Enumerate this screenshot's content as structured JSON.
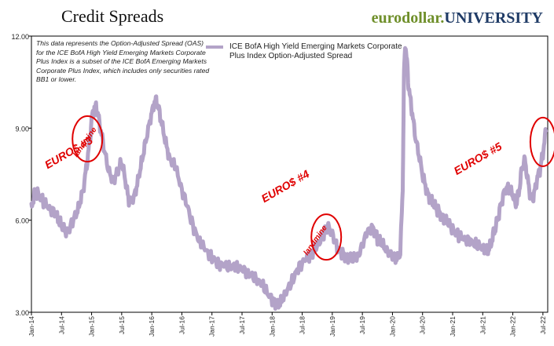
{
  "header": {
    "title": "Credit Spreads",
    "brand_part1": "eurodollar.",
    "brand_part2": "UNIVERSITY"
  },
  "note_text": "This data represents the Option-Adjusted Spread (OAS) for the ICE BofA High Yield Emerging Markets Corporate Plus Index is a subset of the ICE BofA Emerging Markets Corporate Plus Index, which includes only securities rated BB1 or lower.",
  "colors": {
    "series": "#b3a3c8",
    "annotation": "#e00000",
    "brand_green": "#6f8f2a",
    "brand_blue": "#1f3b66"
  },
  "chart_data": {
    "type": "line",
    "title": "Credit Spreads",
    "xlabel": "",
    "ylabel": "",
    "ylim": [
      3.0,
      12.0
    ],
    "xlim": [
      2014.0,
      2022.58
    ],
    "yticks": [
      3.0,
      6.0,
      9.0,
      12.0
    ],
    "ytick_labels": [
      "3.00",
      "6.00",
      "9.00",
      "12.00"
    ],
    "xtick_labels": [
      "Jan-14",
      "Jul-14",
      "Jan-15",
      "Jul-15",
      "Jan-16",
      "Jul-16",
      "Jan-17",
      "Jul-17",
      "Jan-18",
      "Jul-18",
      "Jan-19",
      "Jul-19",
      "Jan-20",
      "Jul-20",
      "Jan-21",
      "Jul-21",
      "Jan-22",
      "Jul-22"
    ],
    "grid": false,
    "legend": "top-center",
    "series": [
      {
        "name": "ICE BofA High Yield Emerging Markets Corporate Plus Index Option-Adjusted Spread",
        "x": [
          2014.0,
          2014.04,
          2014.1,
          2014.2,
          2014.3,
          2014.4,
          2014.48,
          2014.55,
          2014.6,
          2014.7,
          2014.78,
          2014.86,
          2014.92,
          2014.98,
          2015.0,
          2015.04,
          2015.08,
          2015.13,
          2015.2,
          2015.28,
          2015.36,
          2015.43,
          2015.5,
          2015.56,
          2015.62,
          2015.7,
          2015.77,
          2015.84,
          2015.9,
          2015.98,
          2016.04,
          2016.08,
          2016.14,
          2016.22,
          2016.3,
          2016.4,
          2016.5,
          2016.6,
          2016.7,
          2016.8,
          2016.9,
          2017.0,
          2017.1,
          2017.2,
          2017.3,
          2017.4,
          2017.5,
          2017.6,
          2017.7,
          2017.8,
          2017.9,
          2018.0,
          2018.08,
          2018.16,
          2018.25,
          2018.35,
          2018.45,
          2018.55,
          2018.65,
          2018.72,
          2018.8,
          2018.87,
          2018.92,
          2019.0,
          2019.08,
          2019.17,
          2019.25,
          2019.33,
          2019.42,
          2019.5,
          2019.58,
          2019.67,
          2019.75,
          2019.83,
          2019.92,
          2020.0,
          2020.06,
          2020.13,
          2020.17,
          2020.19,
          2020.21,
          2020.24,
          2020.27,
          2020.32,
          2020.38,
          2020.45,
          2020.52,
          2020.6,
          2020.68,
          2020.76,
          2020.84,
          2020.92,
          2021.0,
          2021.1,
          2021.2,
          2021.3,
          2021.4,
          2021.5,
          2021.58,
          2021.63,
          2021.67,
          2021.72,
          2021.78,
          2021.85,
          2021.92,
          2022.0,
          2022.05,
          2022.1,
          2022.15,
          2022.2,
          2022.25,
          2022.3,
          2022.35,
          2022.4,
          2022.45,
          2022.5,
          2022.55
        ],
        "y": [
          6.4,
          6.8,
          6.9,
          6.6,
          6.4,
          6.2,
          5.9,
          5.7,
          5.6,
          6.0,
          6.4,
          7.0,
          7.8,
          8.8,
          9.3,
          9.6,
          9.7,
          9.2,
          8.4,
          7.6,
          7.3,
          7.6,
          7.9,
          7.3,
          6.6,
          6.7,
          7.3,
          8.0,
          8.6,
          9.3,
          9.8,
          9.9,
          9.4,
          8.6,
          8.0,
          7.7,
          7.0,
          6.4,
          5.7,
          5.3,
          5.0,
          4.8,
          4.6,
          4.5,
          4.5,
          4.5,
          4.4,
          4.3,
          4.1,
          4.0,
          3.7,
          3.4,
          3.2,
          3.4,
          3.7,
          4.1,
          4.5,
          4.7,
          4.9,
          5.1,
          5.3,
          5.6,
          5.8,
          5.6,
          5.1,
          4.9,
          4.8,
          4.7,
          4.8,
          5.2,
          5.6,
          5.8,
          5.4,
          5.2,
          5.0,
          4.8,
          4.7,
          4.9,
          7.0,
          10.5,
          11.8,
          11.2,
          10.3,
          9.6,
          8.7,
          8.0,
          7.3,
          6.8,
          6.5,
          6.3,
          6.1,
          5.9,
          5.7,
          5.5,
          5.4,
          5.3,
          5.2,
          5.1,
          5.0,
          5.2,
          5.5,
          5.8,
          6.3,
          6.9,
          7.1,
          6.8,
          6.5,
          6.9,
          7.7,
          8.0,
          7.3,
          6.7,
          6.8,
          7.3,
          7.6,
          8.2,
          8.9
        ]
      }
    ],
    "annotations": [
      {
        "text": "EURO$ #3",
        "x": 2014.65,
        "y": 8.1
      },
      {
        "text": "landmine",
        "x": 2014.92,
        "y": 8.5
      },
      {
        "text": "EURO$ #4",
        "x": 2018.25,
        "y": 7.0
      },
      {
        "text": "landmine",
        "x": 2018.75,
        "y": 5.3
      },
      {
        "text": "EURO$ #5",
        "x": 2021.45,
        "y": 7.9
      }
    ]
  }
}
